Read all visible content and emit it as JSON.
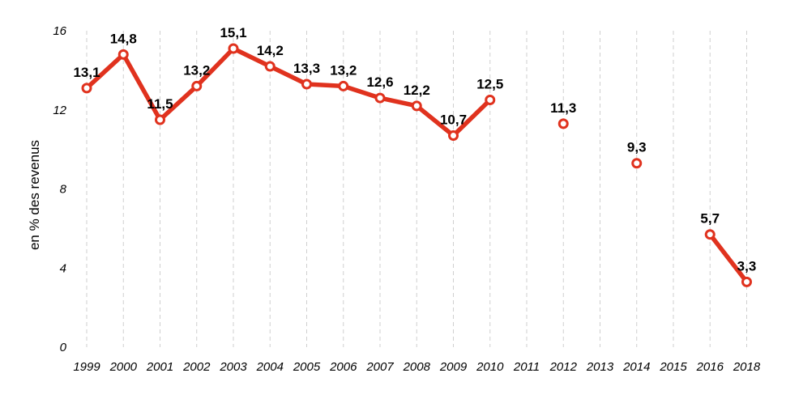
{
  "chart_data": {
    "type": "line",
    "title": "",
    "xlabel": "",
    "ylabel": "en % des revenus",
    "ylim": [
      0,
      16
    ],
    "yticks": [
      "0",
      "4",
      "8",
      "12",
      "16"
    ],
    "grid": "vertical dashed",
    "legend": "none",
    "categories": [
      "1999",
      "2000",
      "2001",
      "2002",
      "2003",
      "2004",
      "2005",
      "2006",
      "2007",
      "2008",
      "2009",
      "2010",
      "2011",
      "2012",
      "2013",
      "2014",
      "2015",
      "2016",
      "2018"
    ],
    "series": [
      {
        "color": "#e0321e",
        "values": [
          13.1,
          14.8,
          11.5,
          13.2,
          15.1,
          14.2,
          13.3,
          13.2,
          12.6,
          12.2,
          10.7,
          12.5,
          null,
          11.3,
          null,
          9.3,
          null,
          5.7,
          3.3
        ],
        "labels": [
          "13,1",
          "14,8",
          "11,5",
          "13,2",
          "15,1",
          "14,2",
          "13,3",
          "13,2",
          "12,6",
          "12,2",
          "10,7",
          "12,5",
          null,
          "11,3",
          null,
          "9,3",
          null,
          "5,7",
          "3,3"
        ]
      }
    ]
  }
}
